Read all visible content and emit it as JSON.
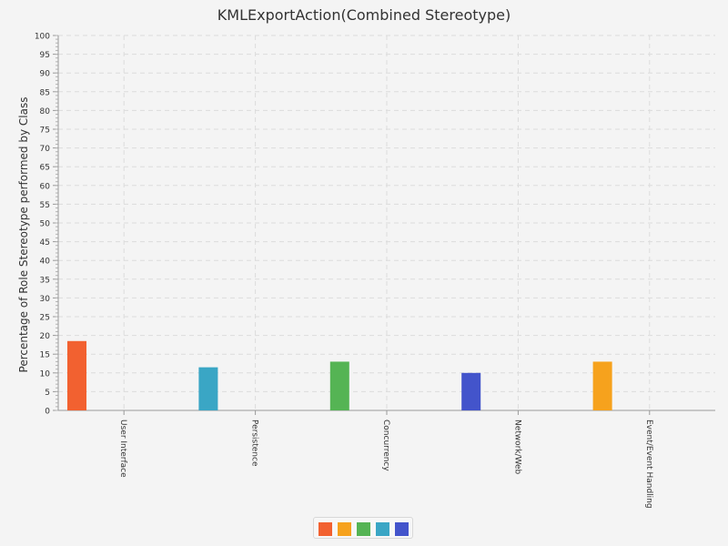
{
  "chart_data": {
    "type": "bar",
    "title": "KMLExportAction(Combined Stereotype)",
    "xlabel": "",
    "ylabel": "Percentage of Role Stereotype performed by Class",
    "ylim": [
      0,
      100
    ],
    "ytick_step": 5,
    "grid": true,
    "legend_position": "bottom",
    "categories": [
      "User Interface",
      "Persistence",
      "Concurrency",
      "Network/Web",
      "Event/Event Handling"
    ],
    "series": [
      {
        "color": "#f26130",
        "values": [
          18.5,
          0,
          0,
          0,
          0
        ]
      },
      {
        "color": "#f6a21d",
        "values": [
          0,
          0,
          0,
          0,
          13
        ]
      },
      {
        "color": "#55b454",
        "values": [
          0,
          0,
          13,
          0,
          0
        ]
      },
      {
        "color": "#3aa6c5",
        "values": [
          0,
          11.5,
          0,
          0,
          0
        ]
      },
      {
        "color": "#4354cb",
        "values": [
          0,
          0,
          0,
          10,
          0
        ]
      }
    ]
  }
}
